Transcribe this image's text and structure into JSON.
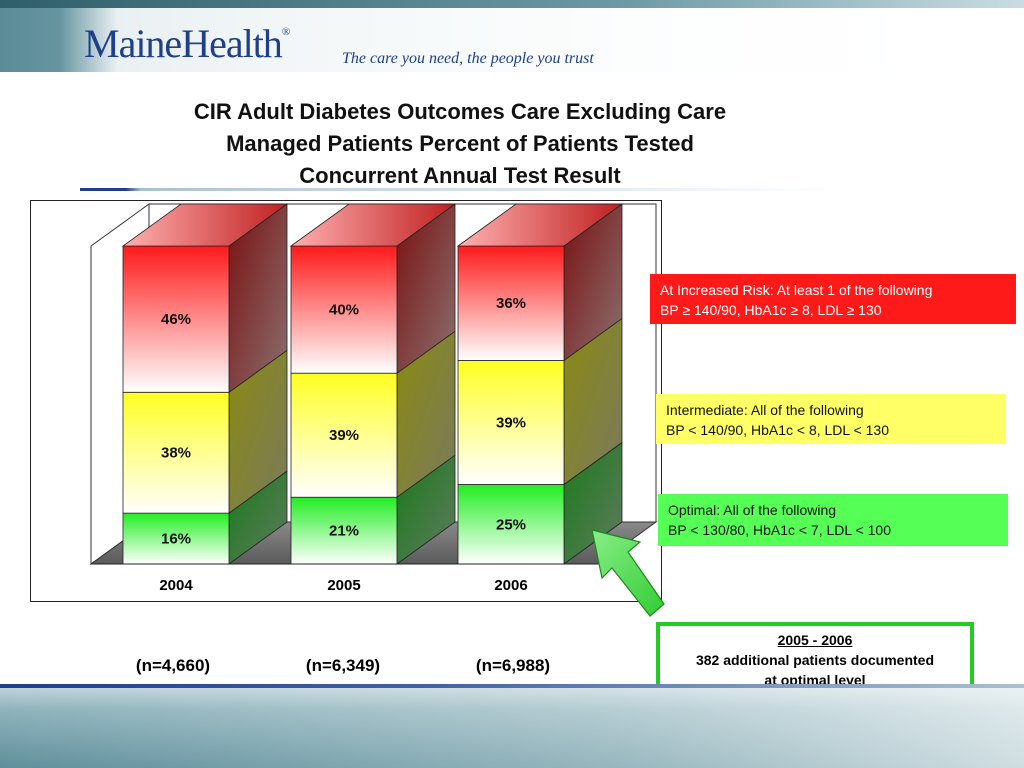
{
  "header": {
    "logo_text": "MaineHealth",
    "logo_mark": "®",
    "tagline": "The care you need, the people you trust"
  },
  "title_lines": [
    "CIR Adult Diabetes Outcomes Care Excluding Care",
    "Managed Patients Percent of Patients Tested",
    "Concurrent Annual Test Result"
  ],
  "colors": {
    "red": "#ff1a1a",
    "yellow": "#ffff66",
    "green": "#55ff55",
    "brand_blue": "#1f3f8a"
  },
  "chart_data": {
    "type": "bar",
    "stacked": true,
    "three_d": true,
    "categories": [
      "2004",
      "2005",
      "2006"
    ],
    "series": [
      {
        "name": "Optimal: All of the following",
        "color": "green",
        "values": [
          16,
          21,
          25
        ],
        "labels": [
          "16%",
          "21%",
          "25%"
        ]
      },
      {
        "name": "Intermediate: All of the following",
        "color": "yellow",
        "values": [
          38,
          39,
          39
        ],
        "labels": [
          "38%",
          "39%",
          "39%"
        ]
      },
      {
        "name": "At Increased Risk: At least 1 of the following",
        "color": "red",
        "values": [
          46,
          40,
          36
        ],
        "labels": [
          "46%",
          "40%",
          "36%"
        ]
      }
    ],
    "ylim": [
      0,
      100
    ],
    "sample_sizes": [
      "(n=4,660)",
      "(n=6,349)",
      "(n=6,988)"
    ]
  },
  "legend": {
    "red": {
      "line1": "At Increased Risk: At least 1 of the following",
      "line2": "BP ≥ 140/90, HbA1c ≥ 8, LDL ≥ 130"
    },
    "yellow": {
      "line1": "Intermediate: All of the following",
      "line2": "BP < 140/90, HbA1c < 8, LDL < 130"
    },
    "green": {
      "line1": "Optimal: All of the following",
      "line2": "BP < 130/80, HbA1c < 7, LDL < 100"
    }
  },
  "callout": {
    "heading": "2005 - 2006",
    "line1": "382 additional patients documented",
    "line2": "at optimal level"
  }
}
